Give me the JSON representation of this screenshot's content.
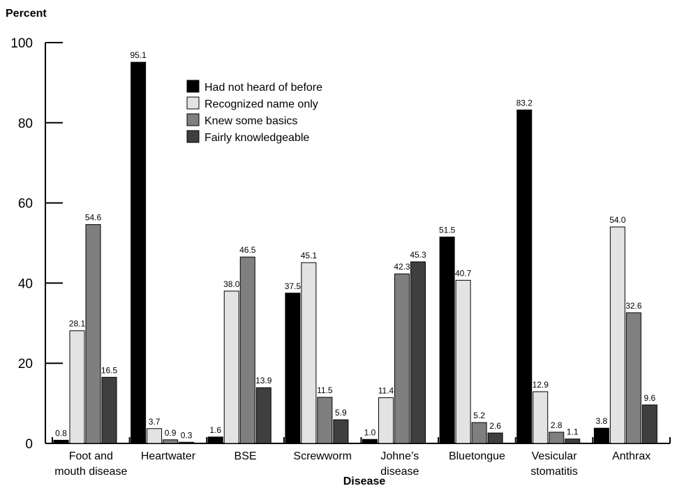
{
  "chart_data": {
    "type": "bar",
    "ylabel": "Percent",
    "xlabel": "Disease",
    "ylim": [
      0,
      100
    ],
    "yticks": [
      "0",
      "20",
      "40",
      "60",
      "80",
      "100"
    ],
    "categories": [
      [
        "Foot and",
        "mouth disease"
      ],
      [
        "Heartwater"
      ],
      [
        "BSE"
      ],
      [
        "Screwworm"
      ],
      [
        "Johne’s",
        "disease"
      ],
      [
        "Bluetongue"
      ],
      [
        "Vesicular",
        "stomatitis"
      ],
      [
        "Anthrax"
      ]
    ],
    "series": [
      {
        "name": "Had not heard of before",
        "color": "#000000",
        "values": [
          0.8,
          95.1,
          1.6,
          37.5,
          1.0,
          51.5,
          83.2,
          3.8
        ],
        "labels": [
          "0.8",
          "95.1",
          "1.6",
          "37.5",
          "1.0",
          "51.5",
          "83.2",
          "3.8"
        ]
      },
      {
        "name": "Recognized name only",
        "color": "#e3e3e3",
        "values": [
          28.1,
          3.7,
          38.0,
          45.1,
          11.4,
          40.7,
          12.9,
          54.0
        ],
        "labels": [
          "28.1",
          "3.7",
          "38.0",
          "45.1",
          "11.4",
          "40.7",
          "12.9",
          "54.0"
        ]
      },
      {
        "name": "Knew some basics",
        "color": "#7f7f7f",
        "values": [
          54.6,
          0.9,
          46.5,
          11.5,
          42.3,
          5.2,
          2.8,
          32.6
        ],
        "labels": [
          "54.6",
          "0.9",
          "46.5",
          "11.5",
          "42.3",
          "5.2",
          "2.8",
          "32.6"
        ]
      },
      {
        "name": "Fairly knowledgeable",
        "color": "#3f3f3f",
        "values": [
          16.5,
          0.3,
          13.9,
          5.9,
          45.3,
          2.6,
          1.1,
          9.6
        ],
        "labels": [
          "16.5",
          "0.3",
          "13.9",
          "5.9",
          "45.3",
          "2.6",
          "1.1",
          "9.6"
        ]
      }
    ],
    "legend_position": "top-center",
    "grid": false
  }
}
